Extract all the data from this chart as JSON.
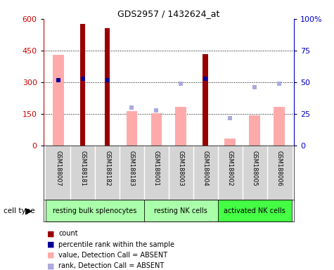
{
  "title": "GDS2957 / 1432624_at",
  "samples": [
    "GSM188007",
    "GSM188181",
    "GSM188182",
    "GSM188183",
    "GSM188001",
    "GSM188003",
    "GSM188004",
    "GSM188002",
    "GSM188005",
    "GSM188006"
  ],
  "cell_groups": [
    {
      "label": "resting bulk splenocytes",
      "start": 0,
      "end": 4,
      "color": "#aaffaa"
    },
    {
      "label": "resting NK cells",
      "start": 4,
      "end": 7,
      "color": "#aaffaa"
    },
    {
      "label": "activated NK cells",
      "start": 7,
      "end": 10,
      "color": "#44ff44"
    }
  ],
  "count_values": [
    null,
    575,
    555,
    null,
    null,
    null,
    435,
    null,
    null,
    null
  ],
  "percentile_rank": [
    52,
    53,
    52,
    null,
    null,
    null,
    53,
    null,
    null,
    null
  ],
  "value_absent": [
    430,
    null,
    null,
    165,
    155,
    185,
    null,
    35,
    145,
    185
  ],
  "rank_absent": [
    52,
    null,
    null,
    30,
    28,
    49,
    null,
    22,
    46,
    49
  ],
  "ylim_left": [
    0,
    600
  ],
  "ylim_right": [
    0,
    100
  ],
  "yticks_left": [
    0,
    150,
    300,
    450,
    600
  ],
  "yticks_right": [
    0,
    25,
    50,
    75,
    100
  ],
  "count_color": "#990000",
  "percentile_color": "#000099",
  "value_absent_color": "#ffaaaa",
  "rank_absent_color": "#aaaadd",
  "left_axis_color": "#cc0000",
  "right_axis_color": "#0000cc",
  "sample_bg": "#d4d4d4",
  "legend_items": [
    {
      "color": "#990000",
      "shape": "square",
      "label": "count"
    },
    {
      "color": "#000099",
      "shape": "square",
      "label": "percentile rank within the sample"
    },
    {
      "color": "#ffaaaa",
      "shape": "square",
      "label": "value, Detection Call = ABSENT"
    },
    {
      "color": "#aaaadd",
      "shape": "square",
      "label": "rank, Detection Call = ABSENT"
    }
  ]
}
